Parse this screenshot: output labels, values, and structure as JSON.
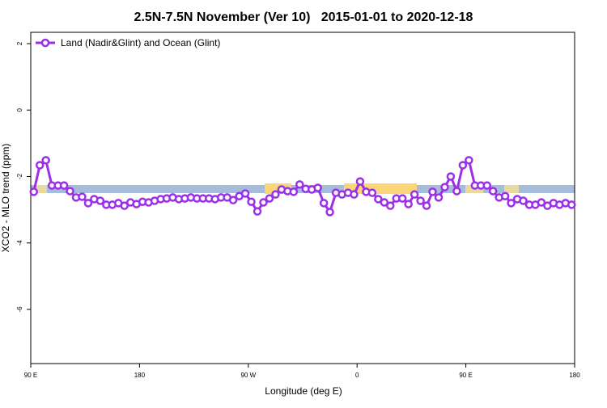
{
  "chart_data": {
    "type": "line",
    "title": "2.5N-7.5N November (Ver 10)   2015-01-01 to 2020-12-18",
    "x_label": "Longitude (deg E)",
    "y_label": "XCO2 - MLO trend (ppm)",
    "x": [
      92.5,
      97.5,
      102.5,
      107.5,
      112.5,
      117.5,
      122.5,
      127.5,
      132.5,
      137.5,
      142.5,
      147.5,
      152.5,
      157.5,
      162.5,
      167.5,
      172.5,
      177.5,
      182.5,
      187.5,
      192.5,
      197.5,
      202.5,
      207.5,
      212.5,
      217.5,
      222.5,
      227.5,
      232.5,
      237.5,
      242.5,
      247.5,
      252.5,
      257.5,
      262.5,
      267.5,
      272.5,
      277.5,
      282.5,
      287.5,
      292.5,
      297.5,
      302.5,
      307.5,
      312.5,
      317.5,
      322.5,
      327.5,
      332.5,
      337.5,
      342.5,
      347.5,
      352.5,
      357.5,
      362.5,
      367.5,
      372.5,
      377.5,
      382.5,
      387.5,
      392.5,
      397.5,
      402.5,
      407.5,
      412.5,
      417.5,
      422.5,
      427.5,
      432.5,
      437.5,
      442.5,
      447.5,
      452.5,
      457.5,
      462.5,
      467.5,
      472.5,
      477.5,
      482.5,
      487.5,
      492.5,
      497.5,
      502.5,
      507.5,
      512.5,
      517.5,
      522.5,
      527.5,
      532.5,
      537.5
    ],
    "series": [
      {
        "name": "Land (Nadir&Glint) and Ocean (Glint)",
        "color": "#9b30e8",
        "values": [
          -2.46,
          -1.66,
          -1.51,
          -2.27,
          -2.27,
          -2.27,
          -2.44,
          -2.63,
          -2.61,
          -2.8,
          -2.68,
          -2.73,
          -2.85,
          -2.85,
          -2.8,
          -2.88,
          -2.78,
          -2.83,
          -2.76,
          -2.78,
          -2.73,
          -2.68,
          -2.66,
          -2.63,
          -2.68,
          -2.66,
          -2.63,
          -2.66,
          -2.66,
          -2.66,
          -2.68,
          -2.63,
          -2.63,
          -2.71,
          -2.59,
          -2.51,
          -2.76,
          -3.05,
          -2.78,
          -2.66,
          -2.54,
          -2.39,
          -2.44,
          -2.46,
          -2.24,
          -2.37,
          -2.39,
          -2.34,
          -2.8,
          -3.07,
          -2.49,
          -2.54,
          -2.49,
          -2.54,
          -2.15,
          -2.46,
          -2.49,
          -2.68,
          -2.78,
          -2.88,
          -2.66,
          -2.66,
          -2.83,
          -2.54,
          -2.73,
          -2.88,
          -2.46,
          -2.63,
          -2.32,
          -2.0,
          -2.44,
          -1.66,
          -1.51,
          -2.27,
          -2.27,
          -2.27,
          -2.44,
          -2.63,
          -2.59,
          -2.8,
          -2.68,
          -2.73,
          -2.85,
          -2.85,
          -2.78,
          -2.88,
          -2.8,
          -2.85,
          -2.8,
          -2.85
        ]
      }
    ],
    "xlim": [
      90,
      540
    ],
    "xticks": [
      {
        "value": 90,
        "label": "90 E"
      },
      180,
      {
        "value": 270,
        "label": "90 W"
      },
      {
        "value": 360,
        "label": "0"
      },
      {
        "value": 450,
        "label": "90 E"
      },
      {
        "value": 540,
        "label": "180"
      }
    ],
    "ylim": [
      -7.63,
      2.34
    ],
    "yticks": [
      -6,
      -4,
      -2,
      0,
      2
    ],
    "legend": "top-left"
  }
}
